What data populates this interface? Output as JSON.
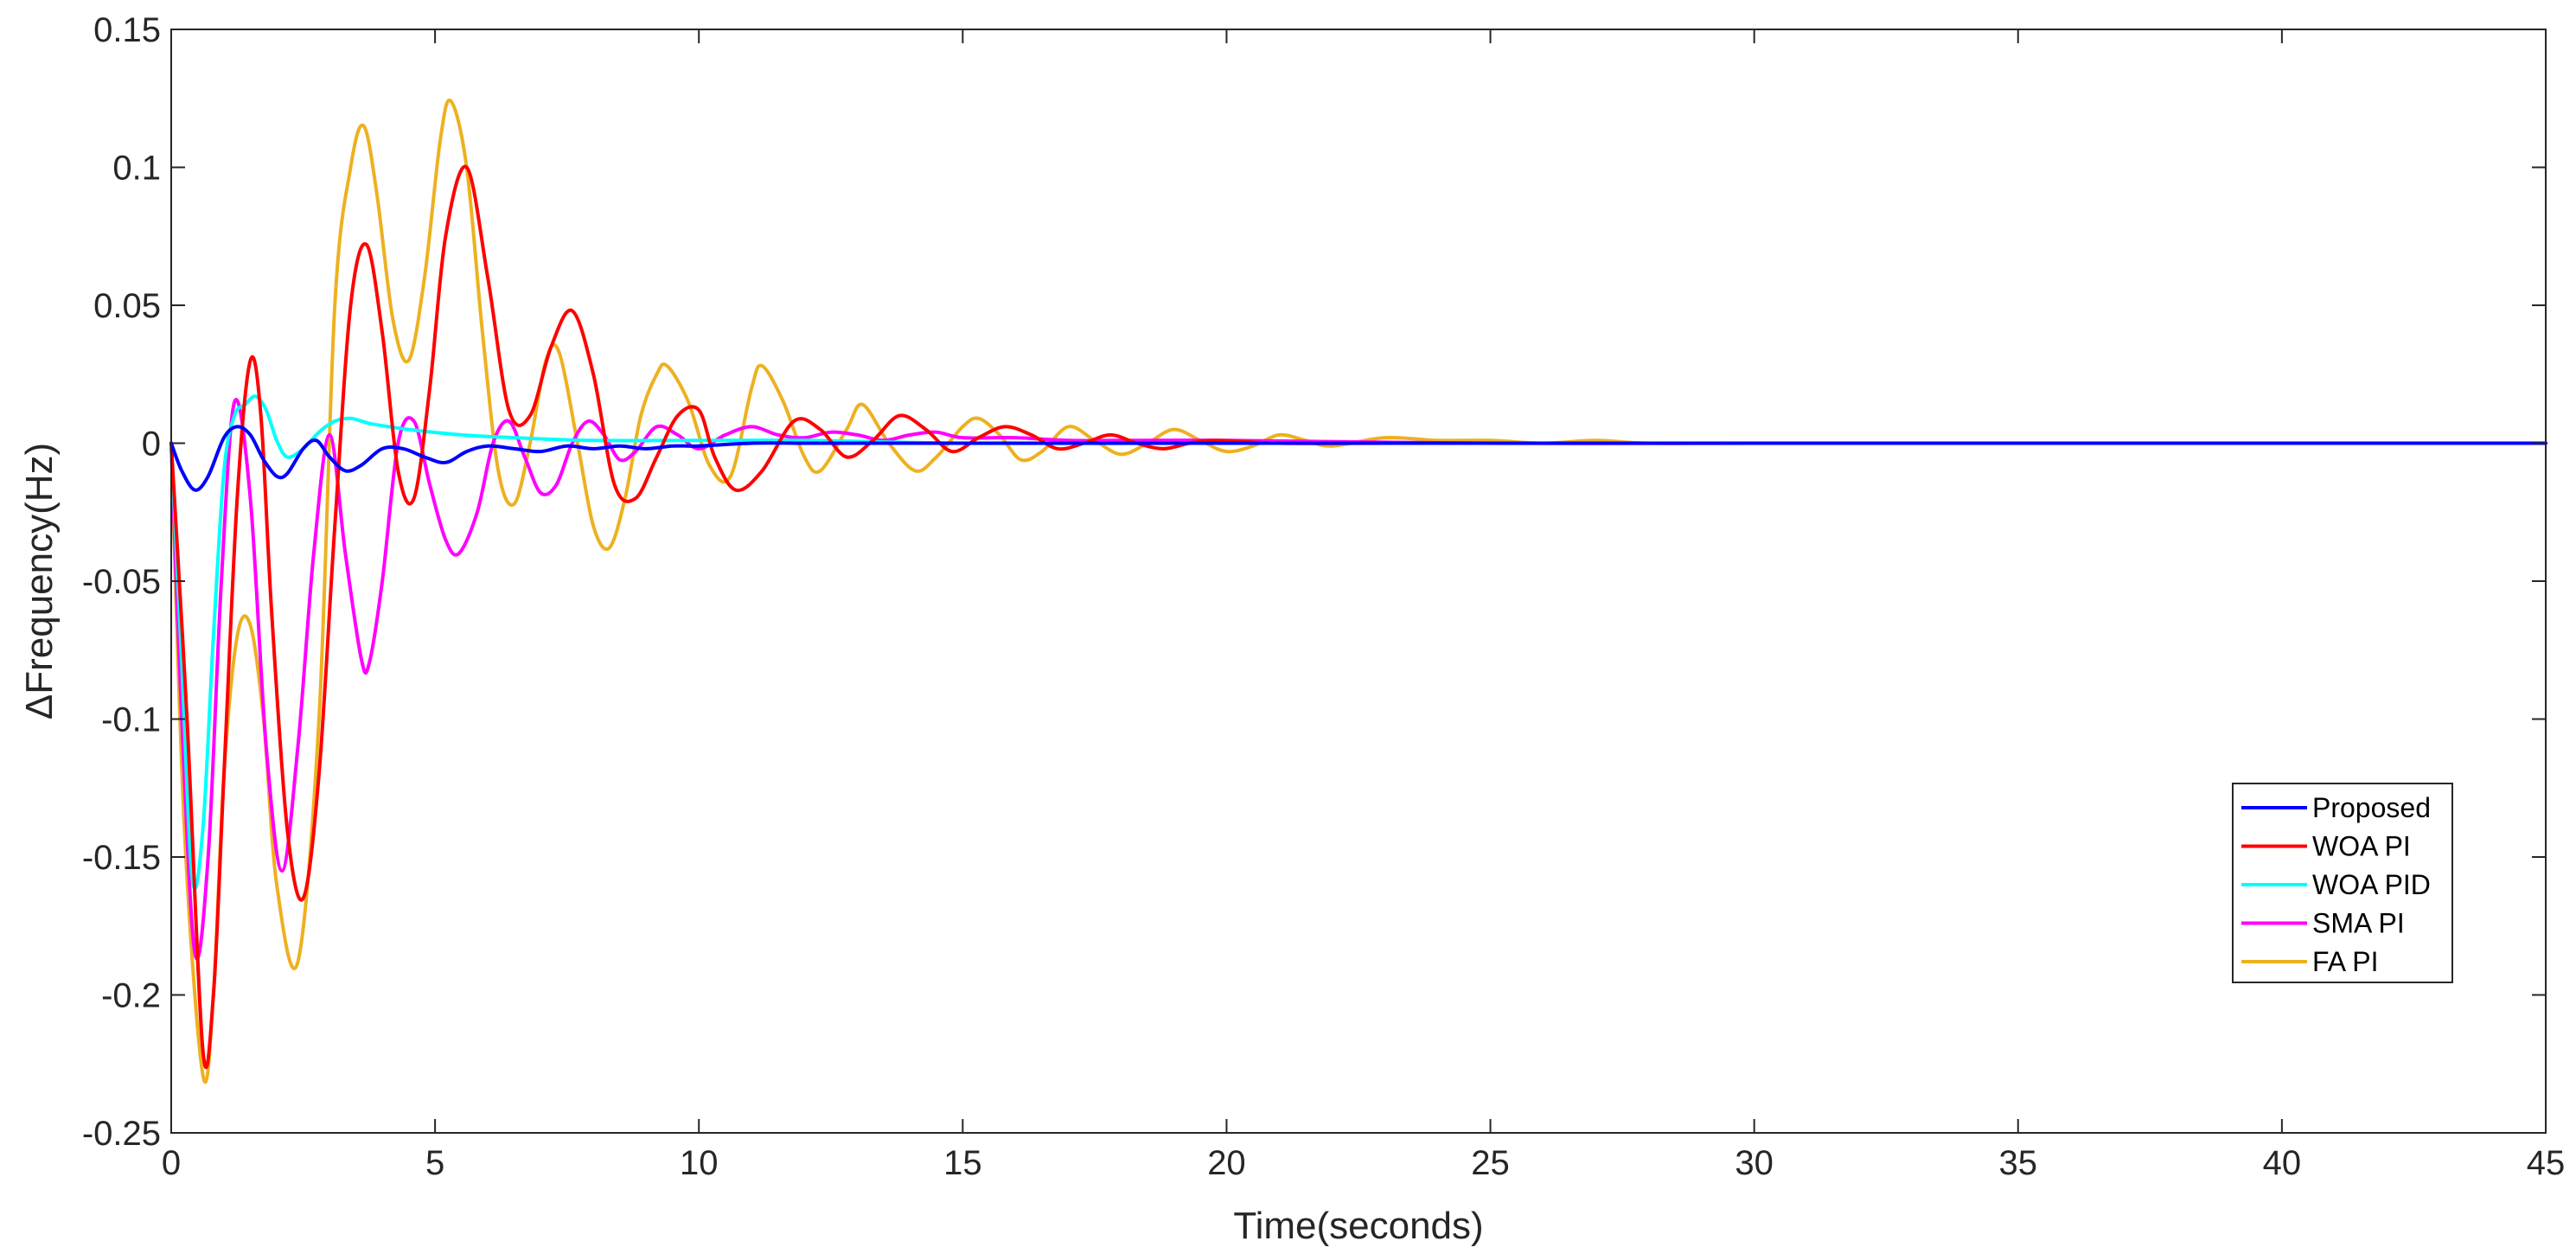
{
  "chart_data": {
    "type": "line",
    "xlabel": "Time(seconds)",
    "ylabel": "ΔFrequency(Hz)",
    "xlim": [
      0,
      45
    ],
    "ylim": [
      -0.25,
      0.15
    ],
    "xticks": [
      0,
      5,
      10,
      15,
      20,
      25,
      30,
      35,
      40,
      45
    ],
    "xtick_labels": [
      "0",
      "5",
      "10",
      "15",
      "20",
      "25",
      "30",
      "35",
      "40",
      "45"
    ],
    "yticks": [
      -0.25,
      -0.2,
      -0.15,
      -0.1,
      -0.05,
      0,
      0.05,
      0.1,
      0.15
    ],
    "ytick_labels": [
      "-0.25",
      "-0.2",
      "-0.15",
      "-0.1",
      "-0.05",
      "0",
      "0.05",
      "0.1",
      "0.15"
    ],
    "grid": false,
    "legend_position": "bottom-right",
    "series": [
      {
        "name": "Proposed",
        "color": "#0000ff",
        "x": [
          0,
          0.2,
          0.45,
          0.7,
          1.0,
          1.25,
          1.5,
          1.75,
          2.0,
          2.2,
          2.5,
          2.75,
          3.0,
          3.3,
          3.6,
          4.0,
          4.4,
          4.8,
          5.2,
          5.6,
          6.0,
          6.5,
          7.0,
          7.5,
          8.0,
          8.5,
          9.0,
          9.5,
          10,
          11,
          12,
          13,
          14,
          15,
          17,
          20,
          25,
          30,
          35,
          40,
          45
        ],
        "y": [
          0,
          -0.01,
          -0.017,
          -0.012,
          0.002,
          0.006,
          0.003,
          -0.006,
          -0.012,
          -0.011,
          -0.002,
          0.001,
          -0.005,
          -0.01,
          -0.008,
          -0.002,
          -0.002,
          -0.005,
          -0.007,
          -0.003,
          -0.001,
          -0.002,
          -0.003,
          -0.001,
          -0.002,
          -0.001,
          -0.002,
          -0.001,
          -0.001,
          0.0,
          0.0,
          0.0,
          0.0,
          0.0,
          0.0,
          0.0,
          0.0,
          0.0,
          0.0,
          0.0,
          0.0
        ]
      },
      {
        "name": "WOA PI",
        "color": "#ff0000",
        "x": [
          0,
          0.3,
          0.6,
          0.8,
          1.0,
          1.25,
          1.5,
          1.7,
          1.9,
          2.2,
          2.5,
          2.8,
          3.1,
          3.4,
          3.7,
          4.0,
          4.3,
          4.6,
          4.9,
          5.2,
          5.6,
          6.0,
          6.4,
          6.8,
          7.2,
          7.6,
          8.0,
          8.4,
          8.8,
          9.2,
          9.6,
          10.0,
          10.3,
          10.7,
          11.2,
          11.8,
          12.3,
          12.8,
          13.3,
          13.8,
          14.3,
          14.8,
          15.3,
          15.8,
          16.3,
          16.8,
          17.3,
          17.8,
          18.3,
          18.8,
          19.3,
          19.8,
          21,
          23,
          25,
          30,
          35,
          40,
          45
        ],
        "y": [
          0,
          -0.1,
          -0.22,
          -0.2,
          -0.12,
          -0.02,
          0.03,
          0.01,
          -0.06,
          -0.14,
          -0.165,
          -0.12,
          -0.03,
          0.05,
          0.072,
          0.04,
          -0.01,
          -0.02,
          0.02,
          0.075,
          0.1,
          0.06,
          0.012,
          0.01,
          0.035,
          0.048,
          0.025,
          -0.015,
          -0.02,
          -0.005,
          0.01,
          0.012,
          -0.005,
          -0.017,
          -0.01,
          0.008,
          0.005,
          -0.005,
          0.001,
          0.01,
          0.005,
          -0.003,
          0.002,
          0.006,
          0.003,
          -0.002,
          0.0,
          0.003,
          0.0,
          -0.002,
          0.0,
          0.001,
          0.0,
          0.0,
          0.0,
          0.0,
          0.0,
          0.0,
          0.0
        ]
      },
      {
        "name": "WOA PID",
        "color": "#00ffff",
        "x": [
          0,
          0.2,
          0.4,
          0.6,
          0.8,
          1.0,
          1.2,
          1.4,
          1.6,
          1.8,
          2.0,
          2.2,
          2.5,
          2.8,
          3.1,
          3.4,
          3.8,
          4.5,
          5.5,
          6.5,
          8,
          10,
          12,
          15,
          20,
          30,
          45
        ],
        "y": [
          0,
          -0.08,
          -0.158,
          -0.14,
          -0.07,
          -0.01,
          0.01,
          0.014,
          0.017,
          0.012,
          0.001,
          -0.005,
          -0.002,
          0.004,
          0.008,
          0.009,
          0.007,
          0.005,
          0.003,
          0.002,
          0.001,
          0.001,
          0.001,
          0.0,
          0.0,
          0.0,
          0.0
        ]
      },
      {
        "name": "SMA PI",
        "color": "#ff00ff",
        "x": [
          0,
          0.2,
          0.45,
          0.7,
          0.95,
          1.2,
          1.5,
          1.8,
          2.1,
          2.4,
          2.7,
          3.0,
          3.3,
          3.6,
          3.75,
          4.0,
          4.3,
          4.6,
          4.9,
          5.2,
          5.45,
          5.8,
          6.1,
          6.4,
          6.7,
          7.0,
          7.3,
          7.6,
          7.9,
          8.2,
          8.5,
          8.8,
          9.2,
          9.6,
          10,
          10.5,
          11.0,
          11.5,
          12,
          12.5,
          13,
          13.5,
          14,
          14.5,
          15,
          16,
          17,
          18,
          20,
          25,
          30,
          35,
          45
        ],
        "y": [
          0,
          -0.1,
          -0.185,
          -0.15,
          -0.05,
          0.015,
          -0.02,
          -0.11,
          -0.155,
          -0.11,
          -0.04,
          0.003,
          -0.04,
          -0.078,
          -0.08,
          -0.05,
          0.0,
          0.008,
          -0.015,
          -0.035,
          -0.04,
          -0.025,
          0.0,
          0.008,
          -0.005,
          -0.018,
          -0.015,
          0.0,
          0.008,
          0.003,
          -0.006,
          -0.003,
          0.006,
          0.003,
          -0.002,
          0.003,
          0.006,
          0.003,
          0.002,
          0.004,
          0.003,
          0.001,
          0.003,
          0.004,
          0.002,
          0.002,
          0.001,
          0.001,
          0.001,
          0.0,
          0.0,
          0.0,
          0.0
        ]
      },
      {
        "name": "FA PI",
        "color": "#edb120",
        "x": [
          0,
          0.25,
          0.6,
          0.8,
          1.0,
          1.25,
          1.5,
          1.75,
          2.0,
          2.4,
          2.8,
          3.1,
          3.4,
          3.65,
          3.9,
          4.2,
          4.5,
          4.8,
          5.1,
          5.3,
          5.6,
          5.9,
          6.2,
          6.5,
          6.8,
          7.1,
          7.35,
          7.7,
          8.0,
          8.3,
          8.6,
          8.9,
          9.2,
          9.4,
          9.8,
          10.2,
          10.6,
          11.0,
          11.2,
          11.6,
          12.0,
          12.3,
          12.8,
          13.1,
          13.6,
          14.1,
          14.5,
          15.0,
          15.3,
          15.7,
          16.1,
          16.5,
          17.0,
          17.5,
          18.0,
          18.5,
          19.0,
          19.5,
          20.0,
          20.5,
          21.0,
          21.5,
          22.0,
          23.0,
          24.0,
          25.0,
          26.0,
          27.0,
          28.0,
          30,
          35,
          40,
          45
        ],
        "y": [
          0,
          -0.14,
          -0.229,
          -0.2,
          -0.12,
          -0.07,
          -0.066,
          -0.1,
          -0.16,
          -0.188,
          -0.1,
          0.05,
          0.1,
          0.115,
          0.09,
          0.045,
          0.03,
          0.06,
          0.11,
          0.124,
          0.1,
          0.04,
          -0.01,
          -0.022,
          0.0,
          0.03,
          0.033,
          0.0,
          -0.03,
          -0.038,
          -0.02,
          0.01,
          0.025,
          0.028,
          0.015,
          -0.008,
          -0.012,
          0.02,
          0.028,
          0.015,
          -0.005,
          -0.01,
          0.005,
          0.014,
          0.0,
          -0.01,
          -0.005,
          0.006,
          0.009,
          0.003,
          -0.006,
          -0.003,
          0.006,
          0.001,
          -0.004,
          0.0,
          0.005,
          0.001,
          -0.003,
          -0.001,
          0.003,
          0.001,
          -0.001,
          0.002,
          0.001,
          0.001,
          0.0,
          0.001,
          0.0,
          0.0,
          0.0,
          0.0,
          0.0
        ]
      }
    ]
  }
}
